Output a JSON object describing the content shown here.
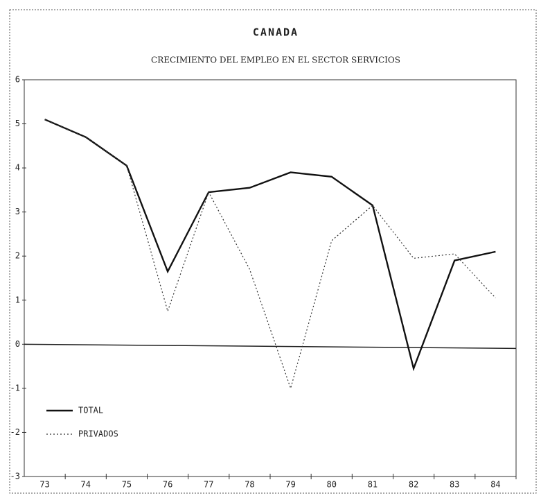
{
  "chart_data": {
    "type": "line",
    "title": "CANADA",
    "subtitle": "CRECIMIENTO DEL EMPLEO EN EL SECTOR SERVICIOS",
    "categories": [
      "73",
      "74",
      "75",
      "76",
      "77",
      "78",
      "79",
      "80",
      "81",
      "82",
      "83",
      "84"
    ],
    "series": [
      {
        "name": "TOTAL",
        "color": "#111111",
        "style": "solid",
        "values": [
          5.1,
          4.7,
          4.05,
          1.65,
          3.45,
          3.55,
          3.9,
          3.8,
          3.15,
          -0.55,
          1.9,
          2.1
        ]
      },
      {
        "name": "PRIVADOS",
        "color": "#333333",
        "style": "dotted",
        "values": [
          5.1,
          4.7,
          4.05,
          0.75,
          3.45,
          1.7,
          -1.0,
          2.35,
          3.15,
          1.95,
          2.05,
          1.05
        ]
      }
    ],
    "ylim": [
      -3,
      6
    ],
    "yticks": [
      -3,
      -2,
      -1,
      0,
      1,
      2,
      3,
      4,
      5,
      6
    ],
    "legend": "lower-left"
  }
}
